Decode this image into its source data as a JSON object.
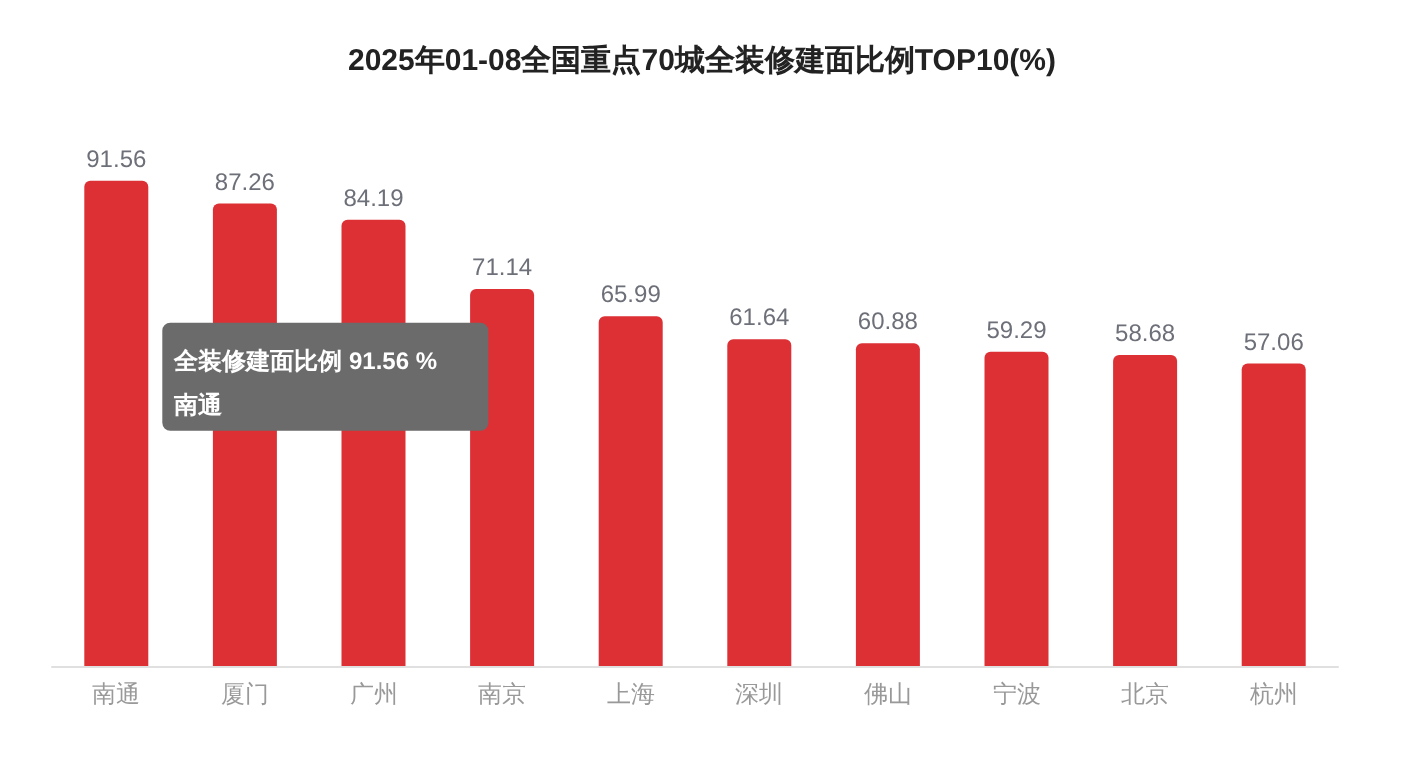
{
  "chart_data": {
    "type": "bar",
    "title": "2025年01-08全国重点70城全装修建面比例TOP10(%)",
    "categories": [
      "南通",
      "厦门",
      "广州",
      "南京",
      "上海",
      "深圳",
      "佛山",
      "宁波",
      "北京",
      "杭州"
    ],
    "values": [
      91.56,
      87.26,
      84.19,
      71.14,
      65.99,
      61.64,
      60.88,
      59.29,
      58.68,
      57.06
    ],
    "color": "#dc3035",
    "data_labels": true,
    "grid": false,
    "tick_labels": "x",
    "annotations": [
      "全装修建面比例 91.56 %\n南通"
    ]
  }
}
